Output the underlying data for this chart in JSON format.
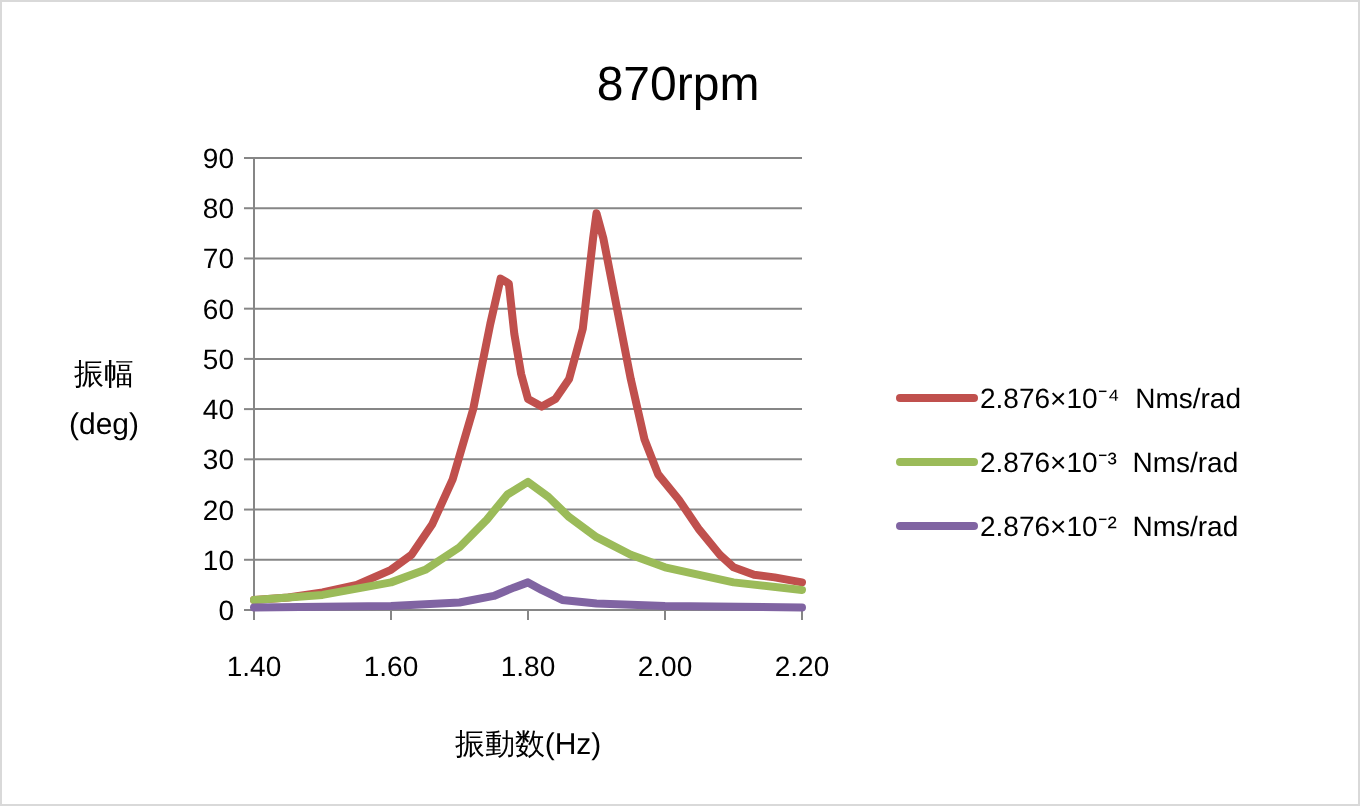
{
  "chart_data": {
    "type": "line",
    "title": "870rpm",
    "xlabel": "振動数(Hz)",
    "ylabel": "振幅\n(deg)",
    "xlim": [
      1.4,
      2.2
    ],
    "xticks": [
      {
        "value": 1.4,
        "label": "1.40"
      },
      {
        "value": 1.6,
        "label": "1.60"
      },
      {
        "value": 1.8,
        "label": "1.80"
      },
      {
        "value": 2.0,
        "label": "2.00"
      },
      {
        "value": 2.2,
        "label": "2.20"
      }
    ],
    "ylim": [
      0,
      90
    ],
    "yticks": [
      0,
      10,
      20,
      30,
      40,
      50,
      60,
      70,
      80,
      90
    ],
    "grid": "y",
    "legend": "right",
    "marker": "none",
    "line_style": "solid",
    "series": [
      {
        "name": "2.876×10⁻⁴  Nms/rad",
        "color": "#c0504d",
        "x": [
          1.4,
          1.45,
          1.5,
          1.55,
          1.6,
          1.63,
          1.66,
          1.69,
          1.72,
          1.745,
          1.76,
          1.772,
          1.78,
          1.79,
          1.8,
          1.82,
          1.84,
          1.86,
          1.88,
          1.895,
          1.9,
          1.91,
          1.93,
          1.95,
          1.97,
          1.99,
          2.02,
          2.05,
          2.08,
          2.1,
          2.13,
          2.16,
          2.2
        ],
        "values": [
          2,
          2.5,
          3.5,
          5,
          8,
          11,
          17,
          26,
          40,
          57,
          66,
          65,
          55,
          47,
          42,
          40.5,
          42,
          46,
          56,
          74,
          79,
          74,
          60,
          46,
          34,
          27,
          22,
          16,
          11,
          8.5,
          7,
          6.5,
          5.5
        ]
      },
      {
        "name": "2.876×10⁻³  Nms/rad",
        "color": "#9bbb59",
        "x": [
          1.4,
          1.5,
          1.6,
          1.65,
          1.7,
          1.74,
          1.77,
          1.8,
          1.83,
          1.86,
          1.9,
          1.95,
          2.0,
          2.05,
          2.1,
          2.2
        ],
        "values": [
          2,
          3,
          5.5,
          8,
          12.5,
          18,
          23,
          25.5,
          22.5,
          18.5,
          14.5,
          11,
          8.5,
          7,
          5.5,
          4
        ]
      },
      {
        "name": "2.876×10⁻²  Nms/rad",
        "color": "#8064a2",
        "x": [
          1.4,
          1.6,
          1.7,
          1.75,
          1.78,
          1.8,
          1.82,
          1.85,
          1.9,
          2.0,
          2.2
        ],
        "values": [
          0.5,
          0.8,
          1.5,
          2.8,
          4.5,
          5.5,
          4,
          2,
          1.3,
          0.8,
          0.5
        ]
      }
    ]
  }
}
